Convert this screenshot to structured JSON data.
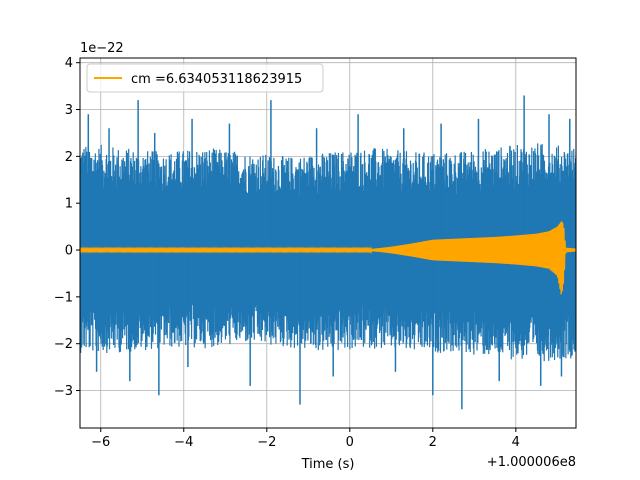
{
  "chart_data": {
    "type": "line",
    "title": "",
    "xlabel": "Time (s)",
    "ylabel": "",
    "x_offset_label": "+1.000006e8",
    "y_scale_label": "1e−22",
    "xlim": [
      -6.5,
      5.45
    ],
    "ylim": [
      -3.8,
      4.1
    ],
    "grid": true,
    "legend_position": "upper-left",
    "x_ticks": [
      -6,
      -4,
      -2,
      0,
      2,
      4
    ],
    "x_tick_labels": [
      "−6",
      "−4",
      "−2",
      "0",
      "2",
      "4"
    ],
    "y_ticks": [
      -3,
      -2,
      -1,
      0,
      1,
      2,
      3,
      4
    ],
    "y_tick_labels": [
      "−3",
      "−2",
      "−1",
      "0",
      "1",
      "2",
      "3",
      "4"
    ],
    "series": [
      {
        "name": "",
        "color": "#1f77b4",
        "description": "strain noise",
        "envelope_x": [
          -6.5,
          -5.5,
          -4.5,
          -3.5,
          -2.5,
          -1.5,
          -0.5,
          0.5,
          1.5,
          2.5,
          3.5,
          4.5,
          5.45
        ],
        "envelope_upper": [
          2.3,
          2.2,
          2.1,
          2.2,
          2.1,
          2.0,
          2.1,
          2.2,
          2.1,
          2.1,
          2.2,
          2.3,
          2.2
        ],
        "envelope_lower": [
          -2.2,
          -2.2,
          -2.1,
          -2.1,
          -2.0,
          -2.1,
          -2.2,
          -2.1,
          -2.2,
          -2.2,
          -2.3,
          -2.4,
          -2.3
        ],
        "spikes": [
          {
            "x": -6.3,
            "y": 2.9
          },
          {
            "x": -5.8,
            "y": 2.6
          },
          {
            "x": -5.1,
            "y": 3.2
          },
          {
            "x": -4.7,
            "y": 2.5
          },
          {
            "x": -3.8,
            "y": 2.8
          },
          {
            "x": -2.9,
            "y": 2.7
          },
          {
            "x": -1.9,
            "y": 3.2
          },
          {
            "x": -0.8,
            "y": 2.6
          },
          {
            "x": 0.2,
            "y": 2.9
          },
          {
            "x": 1.3,
            "y": 2.6
          },
          {
            "x": 2.2,
            "y": 2.7
          },
          {
            "x": 3.1,
            "y": 2.8
          },
          {
            "x": 4.2,
            "y": 3.3
          },
          {
            "x": 4.8,
            "y": 2.9
          },
          {
            "x": 5.3,
            "y": 2.8
          },
          {
            "x": -6.1,
            "y": -2.6
          },
          {
            "x": -5.3,
            "y": -2.8
          },
          {
            "x": -4.6,
            "y": -3.1
          },
          {
            "x": -3.9,
            "y": -2.5
          },
          {
            "x": -2.4,
            "y": -2.9
          },
          {
            "x": -1.2,
            "y": -3.3
          },
          {
            "x": -0.4,
            "y": -2.7
          },
          {
            "x": 1.1,
            "y": -2.6
          },
          {
            "x": 2.0,
            "y": -3.1
          },
          {
            "x": 2.7,
            "y": -3.4
          },
          {
            "x": 3.6,
            "y": -2.8
          },
          {
            "x": 4.6,
            "y": -2.9
          },
          {
            "x": 5.1,
            "y": -2.7
          }
        ]
      },
      {
        "name": "cm =6.634053118623915",
        "color": "#ffa500",
        "description": "chirp template",
        "envelope_x": [
          -6.5,
          0.5,
          1.0,
          1.5,
          2.0,
          2.5,
          3.0,
          3.5,
          4.0,
          4.5,
          4.8,
          5.0,
          5.1,
          5.15,
          5.2,
          5.45
        ],
        "envelope_upper": [
          0.02,
          0.02,
          0.07,
          0.14,
          0.22,
          0.24,
          0.26,
          0.28,
          0.31,
          0.35,
          0.4,
          0.5,
          0.62,
          0.55,
          0.05,
          0.03
        ],
        "envelope_lower": [
          -0.02,
          -0.02,
          -0.07,
          -0.14,
          -0.22,
          -0.24,
          -0.26,
          -0.28,
          -0.31,
          -0.35,
          -0.4,
          -0.55,
          -0.98,
          -0.7,
          -0.05,
          -0.03
        ]
      }
    ]
  }
}
